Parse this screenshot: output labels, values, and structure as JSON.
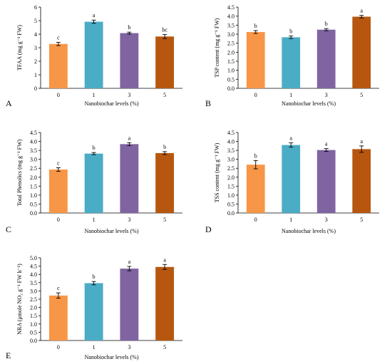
{
  "figure": {
    "panel_colors": [
      "#f79646",
      "#4bacc6",
      "#8064a2",
      "#b7570f"
    ]
  },
  "chart_data": [
    {
      "type": "bar",
      "panel_label": "A",
      "categories": [
        "0",
        "1",
        "3",
        "5"
      ],
      "values": [
        3.28,
        4.92,
        4.08,
        3.83
      ],
      "errors": [
        0.12,
        0.12,
        0.07,
        0.15
      ],
      "letters": [
        "c",
        "a",
        "b",
        "bc"
      ],
      "ylabel": "TFAA (mg g⁻¹ FW)",
      "xlabel": "Nanobiochar levels (%)",
      "ylim": [
        0,
        6
      ],
      "yticks": [
        "0",
        "1",
        "2",
        "3",
        "4",
        "5",
        "6"
      ],
      "grid": false
    },
    {
      "type": "bar",
      "panel_label": "B",
      "categories": [
        "0",
        "1",
        "3",
        "5"
      ],
      "values": [
        3.12,
        2.83,
        3.25,
        3.97
      ],
      "errors": [
        0.08,
        0.07,
        0.06,
        0.07
      ],
      "letters": [
        "b",
        "b",
        "b",
        "a"
      ],
      "ylabel": "TSP content (mg g⁻¹ FW)",
      "xlabel": "Nanobiochar levels (%)",
      "ylim": [
        0,
        4.5
      ],
      "yticks": [
        "0.0",
        "0.5",
        "1.0",
        "1.5",
        "2.0",
        "2.5",
        "3.0",
        "3.5",
        "4.0",
        "4.5"
      ],
      "grid": false
    },
    {
      "type": "bar",
      "panel_label": "C",
      "categories": [
        "0",
        "1",
        "3",
        "5"
      ],
      "values": [
        2.43,
        3.32,
        3.85,
        3.35
      ],
      "errors": [
        0.1,
        0.06,
        0.08,
        0.08
      ],
      "letters": [
        "c",
        "b",
        "a",
        "b"
      ],
      "ylabel": "Total Phenolics (mg g⁻¹ FW)",
      "xlabel": "Nanobiochar levels (%)",
      "ylim": [
        0,
        4.5
      ],
      "yticks": [
        "0.0",
        "0.5",
        "1.0",
        "1.5",
        "2.0",
        "2.5",
        "3.0",
        "3.5",
        "4.0",
        "4.5"
      ],
      "grid": false
    },
    {
      "type": "bar",
      "panel_label": "D",
      "categories": [
        "0",
        "1",
        "3",
        "5"
      ],
      "values": [
        2.7,
        3.8,
        3.52,
        3.57
      ],
      "errors": [
        0.23,
        0.12,
        0.08,
        0.18
      ],
      "letters": [
        "b",
        "a",
        "a",
        "a"
      ],
      "ylabel": "TSS content (mg g⁻¹ FW)",
      "xlabel": "Nanobiochar levels (%)",
      "ylim": [
        0,
        4.5
      ],
      "yticks": [
        "0.0",
        "0.5",
        "1.0",
        "1.5",
        "2.0",
        "2.5",
        "3.0",
        "3.5",
        "4.0",
        "4.5"
      ],
      "grid": false
    },
    {
      "type": "bar",
      "panel_label": "E",
      "categories": [
        "0",
        "1",
        "3",
        "5"
      ],
      "values": [
        2.72,
        3.47,
        4.35,
        4.45
      ],
      "errors": [
        0.16,
        0.1,
        0.13,
        0.15
      ],
      "letters": [
        "c",
        "b",
        "a",
        "a"
      ],
      "ylabel": "NRA (μmole NO₂ g⁻¹ FW h⁻¹)",
      "xlabel": "Nanobiochar levels (%)",
      "ylim": [
        0,
        5
      ],
      "yticks": [
        "0.0",
        "0.5",
        "1.0",
        "1.5",
        "2.0",
        "2.5",
        "3.0",
        "3.5",
        "4.0",
        "4.5",
        "5.0"
      ],
      "grid": false
    }
  ]
}
